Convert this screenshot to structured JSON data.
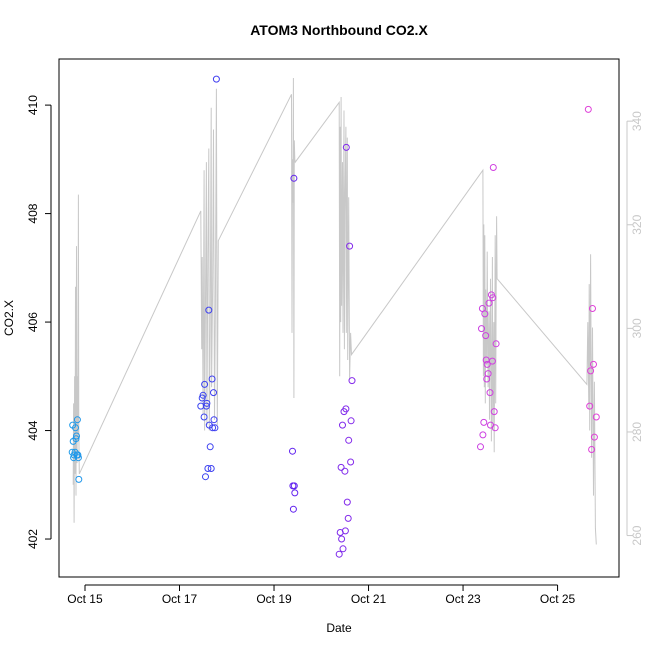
{
  "chart_data": {
    "type": "scatter",
    "title": "ATOM3 Northbound CO2.X",
    "xlabel": "Date",
    "ylabel": "CO2.X",
    "x_ticks": [
      {
        "label": "Oct 15",
        "day": 15
      },
      {
        "label": "Oct 17",
        "day": 17
      },
      {
        "label": "Oct 19",
        "day": 19
      },
      {
        "label": "Oct 21",
        "day": 21
      },
      {
        "label": "Oct 23",
        "day": 23
      },
      {
        "label": "Oct 25",
        "day": 25
      }
    ],
    "xlim": [
      14.45,
      26.3
    ],
    "ylim": [
      401.3,
      410.85
    ],
    "y_ticks": [
      402,
      404,
      406,
      408,
      410
    ],
    "y2lim": [
      252,
      352
    ],
    "y2_ticks": [
      260,
      280,
      300,
      320,
      340
    ],
    "grid": false,
    "point_series": {
      "color_gradient": [
        "#1e9bea",
        "#3050f0",
        "#5a20f0",
        "#9a30e8",
        "#d040e0",
        "#e040d8"
      ],
      "points": [
        [
          14.73,
          403.6
        ],
        [
          14.74,
          404.1
        ],
        [
          14.75,
          403.8
        ],
        [
          14.76,
          403.5
        ],
        [
          14.77,
          403.55
        ],
        [
          14.79,
          403.6
        ],
        [
          14.8,
          404.05
        ],
        [
          14.81,
          403.85
        ],
        [
          14.82,
          403.9
        ],
        [
          14.83,
          403.55
        ],
        [
          14.84,
          404.2
        ],
        [
          14.85,
          403.55
        ],
        [
          14.86,
          403.5
        ],
        [
          14.87,
          403.1
        ],
        [
          17.45,
          404.45
        ],
        [
          17.48,
          404.6
        ],
        [
          17.5,
          404.65
        ],
        [
          17.52,
          404.25
        ],
        [
          17.53,
          404.85
        ],
        [
          17.55,
          403.15
        ],
        [
          17.57,
          404.45
        ],
        [
          17.58,
          404.5
        ],
        [
          17.6,
          403.3
        ],
        [
          17.62,
          406.22
        ],
        [
          17.63,
          404.1
        ],
        [
          17.65,
          403.7
        ],
        [
          17.67,
          403.3
        ],
        [
          17.69,
          404.95
        ],
        [
          17.7,
          404.05
        ],
        [
          17.72,
          404.7
        ],
        [
          17.73,
          404.2
        ],
        [
          17.75,
          404.05
        ],
        [
          17.78,
          410.48
        ],
        [
          19.39,
          403.62
        ],
        [
          19.4,
          402.98
        ],
        [
          19.41,
          402.55
        ],
        [
          19.42,
          408.65
        ],
        [
          19.43,
          402.98
        ],
        [
          19.44,
          402.85
        ],
        [
          20.38,
          401.72
        ],
        [
          20.4,
          402.12
        ],
        [
          20.42,
          403.32
        ],
        [
          20.43,
          402.0
        ],
        [
          20.45,
          404.1
        ],
        [
          20.46,
          401.82
        ],
        [
          20.48,
          404.35
        ],
        [
          20.5,
          403.25
        ],
        [
          20.51,
          402.15
        ],
        [
          20.52,
          404.4
        ],
        [
          20.53,
          409.22
        ],
        [
          20.55,
          402.68
        ],
        [
          20.57,
          402.38
        ],
        [
          20.58,
          403.82
        ],
        [
          20.6,
          407.4
        ],
        [
          20.62,
          403.42
        ],
        [
          20.63,
          404.18
        ],
        [
          20.65,
          404.92
        ],
        [
          23.37,
          403.7
        ],
        [
          23.39,
          405.88
        ],
        [
          23.41,
          406.25
        ],
        [
          23.42,
          403.92
        ],
        [
          23.44,
          404.15
        ],
        [
          23.46,
          406.15
        ],
        [
          23.48,
          405.75
        ],
        [
          23.49,
          405.3
        ],
        [
          23.5,
          404.95
        ],
        [
          23.51,
          405.22
        ],
        [
          23.53,
          405.05
        ],
        [
          23.55,
          406.35
        ],
        [
          23.57,
          404.7
        ],
        [
          23.58,
          404.1
        ],
        [
          23.6,
          406.5
        ],
        [
          23.62,
          405.28
        ],
        [
          23.63,
          406.45
        ],
        [
          23.64,
          408.85
        ],
        [
          23.66,
          404.35
        ],
        [
          23.68,
          404.05
        ],
        [
          23.7,
          405.6
        ],
        [
          25.65,
          409.92
        ],
        [
          25.68,
          404.45
        ],
        [
          25.7,
          405.1
        ],
        [
          25.72,
          403.65
        ],
        [
          25.74,
          406.25
        ],
        [
          25.76,
          405.22
        ],
        [
          25.78,
          403.88
        ],
        [
          25.82,
          404.25
        ]
      ]
    },
    "line_series": {
      "color": "#c8c8c8",
      "points": [
        [
          14.75,
          403.0
        ],
        [
          14.76,
          404.5
        ],
        [
          14.77,
          402.3
        ],
        [
          14.78,
          405.0
        ],
        [
          14.79,
          403.2
        ],
        [
          14.8,
          406.65
        ],
        [
          14.81,
          402.8
        ],
        [
          14.82,
          407.4
        ],
        [
          14.83,
          403.4
        ],
        [
          14.84,
          405.0
        ],
        [
          14.85,
          403.8
        ],
        [
          14.86,
          408.35
        ],
        [
          14.87,
          404.0
        ],
        [
          14.88,
          403.2
        ],
        [
          17.45,
          408.05
        ],
        [
          17.47,
          405.5
        ],
        [
          17.48,
          407.2
        ],
        [
          17.5,
          404.3
        ],
        [
          17.52,
          408.8
        ],
        [
          17.53,
          404.0
        ],
        [
          17.55,
          406.4
        ],
        [
          17.57,
          408.95
        ],
        [
          17.58,
          404.1
        ],
        [
          17.6,
          407.3
        ],
        [
          17.62,
          409.2
        ],
        [
          17.63,
          404.0
        ],
        [
          17.65,
          405.8
        ],
        [
          17.67,
          409.95
        ],
        [
          17.68,
          404.8
        ],
        [
          17.7,
          406.6
        ],
        [
          17.72,
          409.55
        ],
        [
          17.74,
          404.2
        ],
        [
          17.76,
          406.3
        ],
        [
          17.78,
          410.3
        ],
        [
          17.8,
          404.1
        ],
        [
          17.82,
          407.5
        ],
        [
          19.37,
          410.2
        ],
        [
          19.38,
          405.8
        ],
        [
          19.39,
          409.0
        ],
        [
          19.4,
          408.2
        ],
        [
          19.41,
          410.5
        ],
        [
          19.42,
          404.6
        ],
        [
          19.43,
          409.35
        ],
        [
          19.44,
          409.0
        ],
        [
          19.45,
          408.95
        ],
        [
          20.38,
          410.05
        ],
        [
          20.39,
          405.0
        ],
        [
          20.4,
          409.6
        ],
        [
          20.41,
          406.0
        ],
        [
          20.42,
          410.15
        ],
        [
          20.43,
          406.3
        ],
        [
          20.45,
          408.95
        ],
        [
          20.46,
          405.8
        ],
        [
          20.48,
          409.9
        ],
        [
          20.49,
          405.5
        ],
        [
          20.5,
          408.0
        ],
        [
          20.52,
          409.6
        ],
        [
          20.53,
          405.8
        ],
        [
          20.55,
          409.4
        ],
        [
          20.56,
          405.3
        ],
        [
          20.58,
          408.3
        ],
        [
          20.6,
          404.95
        ],
        [
          20.62,
          405.8
        ],
        [
          20.64,
          405.4
        ],
        [
          23.42,
          408.8
        ],
        [
          23.43,
          405.0
        ],
        [
          23.44,
          407.8
        ],
        [
          23.45,
          404.8
        ],
        [
          23.46,
          407.6
        ],
        [
          23.47,
          404.5
        ],
        [
          23.48,
          406.6
        ],
        [
          23.5,
          405.2
        ],
        [
          23.51,
          407.3
        ],
        [
          23.53,
          404.8
        ],
        [
          23.55,
          406.2
        ],
        [
          23.56,
          404.2
        ],
        [
          23.58,
          406.8
        ],
        [
          23.6,
          403.8
        ],
        [
          23.62,
          407.2
        ],
        [
          23.63,
          404.0
        ],
        [
          23.65,
          406.0
        ],
        [
          23.66,
          403.6
        ],
        [
          23.68,
          407.6
        ],
        [
          23.69,
          404.5
        ],
        [
          23.7,
          406.3
        ],
        [
          23.71,
          407.95
        ],
        [
          23.72,
          406.8
        ],
        [
          25.62,
          404.85
        ],
        [
          25.64,
          406.0
        ],
        [
          25.66,
          404.4
        ],
        [
          25.67,
          406.7
        ],
        [
          25.68,
          404.0
        ],
        [
          25.7,
          407.25
        ],
        [
          25.72,
          403.5
        ],
        [
          25.74,
          405.9
        ],
        [
          25.76,
          402.8
        ],
        [
          25.78,
          404.9
        ],
        [
          25.8,
          402.2
        ],
        [
          25.82,
          401.9
        ]
      ]
    }
  }
}
